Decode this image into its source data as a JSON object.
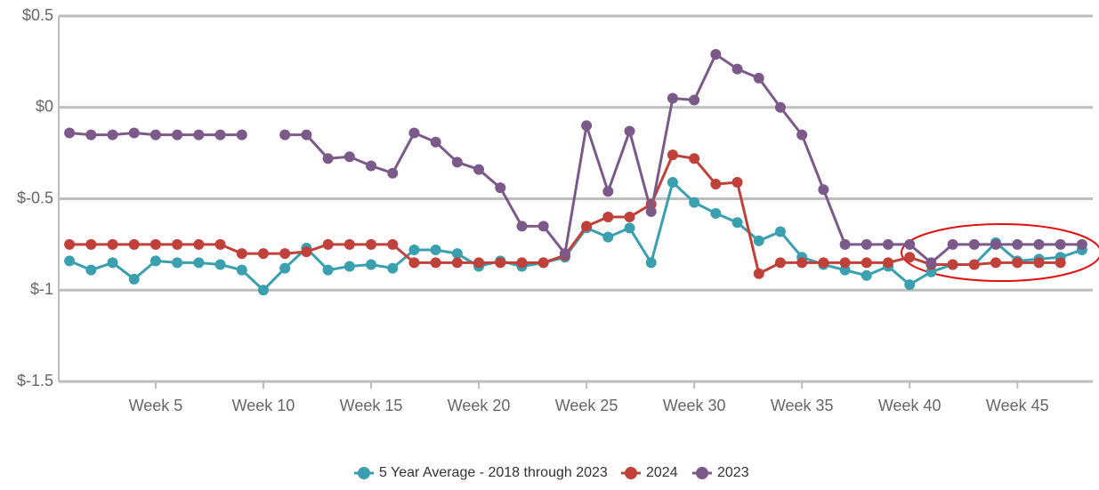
{
  "chart_data": {
    "type": "line",
    "x": [
      1,
      2,
      3,
      4,
      5,
      6,
      7,
      8,
      9,
      10,
      11,
      12,
      13,
      14,
      15,
      16,
      17,
      18,
      19,
      20,
      21,
      22,
      23,
      24,
      25,
      26,
      27,
      28,
      29,
      30,
      31,
      32,
      33,
      34,
      35,
      36,
      37,
      38,
      39,
      40,
      41,
      42,
      43,
      44,
      45,
      46,
      47,
      48
    ],
    "xlim": [
      0.5,
      48.5
    ],
    "xticks": [
      {
        "value": 5,
        "label": "Week 5"
      },
      {
        "value": 10,
        "label": "Week 10"
      },
      {
        "value": 15,
        "label": "Week 15"
      },
      {
        "value": 20,
        "label": "Week 20"
      },
      {
        "value": 25,
        "label": "Week 25"
      },
      {
        "value": 30,
        "label": "Week 30"
      },
      {
        "value": 35,
        "label": "Week 35"
      },
      {
        "value": 40,
        "label": "Week 40"
      },
      {
        "value": 45,
        "label": "Week 45"
      }
    ],
    "ylim": [
      -1.5,
      0.5
    ],
    "yticks": [
      {
        "value": -1.5,
        "label": "$-1.5"
      },
      {
        "value": -1,
        "label": "$-1"
      },
      {
        "value": -0.5,
        "label": "$-0.5"
      },
      {
        "value": 0,
        "label": "$0"
      },
      {
        "value": 0.5,
        "label": "$0.5"
      }
    ],
    "grid": true,
    "series": [
      {
        "name": "5 Year Average - 2018 through 2023",
        "color": "#3a9fae",
        "values": [
          -0.84,
          -0.89,
          -0.85,
          -0.94,
          -0.84,
          -0.85,
          -0.85,
          -0.86,
          -0.89,
          -1.0,
          -0.88,
          -0.77,
          -0.89,
          -0.87,
          -0.86,
          -0.88,
          -0.78,
          -0.78,
          -0.8,
          -0.87,
          -0.84,
          -0.87,
          -0.85,
          -0.82,
          -0.66,
          -0.71,
          -0.66,
          -0.85,
          -0.41,
          -0.52,
          -0.58,
          -0.63,
          -0.73,
          -0.68,
          -0.82,
          -0.86,
          -0.89,
          -0.92,
          -0.87,
          -0.97,
          -0.9,
          -0.86,
          -0.86,
          -0.74,
          -0.84,
          -0.83,
          -0.82,
          -0.78
        ]
      },
      {
        "name": "2024",
        "color": "#c0403a",
        "values": [
          -0.75,
          -0.75,
          -0.75,
          -0.75,
          -0.75,
          -0.75,
          -0.75,
          -0.75,
          -0.8,
          -0.8,
          -0.8,
          -0.79,
          -0.75,
          -0.75,
          -0.75,
          -0.75,
          -0.85,
          -0.85,
          -0.85,
          -0.85,
          -0.85,
          -0.85,
          -0.85,
          -0.81,
          -0.65,
          -0.6,
          -0.6,
          -0.53,
          -0.26,
          -0.28,
          -0.42,
          -0.41,
          -0.91,
          -0.85,
          -0.85,
          -0.85,
          -0.85,
          -0.85,
          -0.85,
          -0.82,
          -0.86,
          -0.86,
          -0.86,
          -0.85,
          -0.85,
          -0.85,
          -0.85,
          null
        ]
      },
      {
        "name": "2023",
        "color": "#7b5a8a",
        "values": [
          -0.14,
          -0.15,
          -0.15,
          -0.14,
          -0.15,
          -0.15,
          -0.15,
          -0.15,
          -0.15,
          null,
          -0.15,
          -0.15,
          -0.28,
          -0.27,
          -0.32,
          -0.36,
          -0.14,
          -0.19,
          -0.3,
          -0.34,
          -0.44,
          -0.65,
          -0.65,
          -0.8,
          -0.1,
          -0.46,
          -0.13,
          -0.57,
          0.05,
          0.04,
          0.29,
          0.21,
          0.16,
          0.0,
          -0.15,
          -0.45,
          -0.75,
          -0.75,
          -0.75,
          -0.75,
          -0.85,
          -0.75,
          -0.75,
          -0.75,
          -0.75,
          -0.75,
          -0.75,
          -0.75
        ]
      }
    ]
  }
}
